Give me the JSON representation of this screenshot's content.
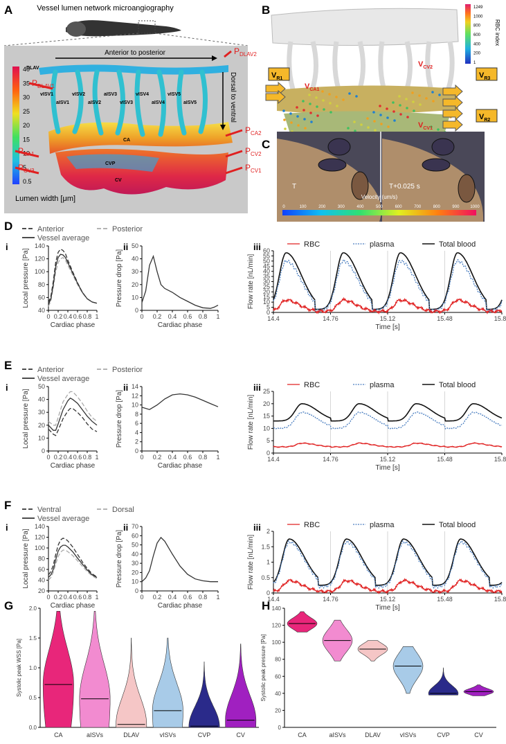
{
  "panels": {
    "A": {
      "letter": "A",
      "title": "Vessel lumen network microangiography",
      "arrow_ap": "Anterior to posterior",
      "arrow_dv": "Dorsal to ventral",
      "colorbar_ticks": [
        "40",
        "35",
        "30",
        "25",
        "20",
        "15",
        "10",
        "5",
        "0.5"
      ],
      "colorbar_label": "Lumen width [μm]",
      "colors": {
        "panel_bg": "#c9c9c9",
        "pressure_label": "#e02020"
      },
      "vessel_labels": [
        "DLAV",
        "vISV1",
        "aISV1",
        "vISV2",
        "aISV2",
        "aISV3",
        "vISV3",
        "vISV4",
        "aISV4",
        "vISV5",
        "aISV5",
        "CA",
        "CVP",
        "CV"
      ],
      "pressure_labels": [
        {
          "p": "P",
          "sub": "DLAV2"
        },
        {
          "p": "P",
          "sub": "DLAV1"
        },
        {
          "p": "P",
          "sub": "CA2"
        },
        {
          "p": "P",
          "sub": "CA1"
        },
        {
          "p": "P",
          "sub": "CV2"
        },
        {
          "p": "P",
          "sub": "CV3"
        },
        {
          "p": "P",
          "sub": "CV1"
        }
      ]
    },
    "B": {
      "letter": "B",
      "colorbar_ticks": [
        "1249",
        "1000",
        "800",
        "600",
        "400",
        "200",
        "1"
      ],
      "colorbar_label": "RBC index",
      "velocity_labels": [
        {
          "v": "V",
          "sub": "R1"
        },
        {
          "v": "V",
          "sub": "R3"
        },
        {
          "v": "V",
          "sub": "R2"
        },
        {
          "v": "V",
          "sub": "CA1"
        },
        {
          "v": "V",
          "sub": "CV2"
        },
        {
          "v": "V",
          "sub": "CV1"
        }
      ]
    },
    "C": {
      "letter": "C",
      "frame_left": "T",
      "frame_right": "T+0.025 s",
      "colorbar_label": "Velocity (um/s)",
      "colorbar_ticks": [
        "0",
        "100",
        "200",
        "300",
        "400",
        "500",
        "600",
        "700",
        "800",
        "900",
        "1000"
      ]
    }
  },
  "chart_data": [
    {
      "id": "D-i",
      "letter": "D",
      "sub": "i",
      "type": "line",
      "legend": [
        {
          "name": "Anterior",
          "style": "dash-dark"
        },
        {
          "name": "Posterior",
          "style": "dash-light"
        },
        {
          "name": "Vessel average",
          "style": "solid"
        }
      ],
      "xlabel": "Cardiac phase",
      "ylabel": "Local pressure [Pa]",
      "xlim": [
        0,
        1
      ],
      "ylim": [
        40,
        140
      ],
      "xticks": [
        "0",
        "0.2",
        "0.4",
        "0.6",
        "0.8",
        "1"
      ],
      "yticks": [
        "40",
        "60",
        "80",
        "100",
        "120",
        "140"
      ],
      "x": [
        0,
        0.05,
        0.1,
        0.15,
        0.2,
        0.25,
        0.3,
        0.35,
        0.4,
        0.5,
        0.6,
        0.7,
        0.8,
        0.9,
        1
      ],
      "series": [
        {
          "name": "Anterior",
          "values": [
            52,
            62,
            85,
            115,
            130,
            135,
            133,
            128,
            118,
            100,
            83,
            68,
            58,
            53,
            51
          ]
        },
        {
          "name": "Posterior",
          "values": [
            46,
            55,
            75,
            100,
            114,
            120,
            122,
            118,
            110,
            95,
            80,
            67,
            58,
            53,
            51
          ]
        },
        {
          "name": "Vessel average",
          "values": [
            49,
            58,
            80,
            108,
            122,
            127,
            126,
            122,
            114,
            98,
            82,
            68,
            58,
            53,
            51
          ]
        }
      ]
    },
    {
      "id": "D-ii",
      "sub": "ii",
      "type": "line",
      "xlabel": "Cardiac phase",
      "ylabel": "Pressure drop [Pa]",
      "xlim": [
        0,
        1
      ],
      "ylim": [
        0,
        50
      ],
      "xticks": [
        "0",
        "0.2",
        "0.4",
        "0.6",
        "0.8",
        "1"
      ],
      "yticks": [
        "0",
        "10",
        "20",
        "30",
        "40",
        "50"
      ],
      "x": [
        0,
        0.05,
        0.1,
        0.15,
        0.2,
        0.25,
        0.3,
        0.4,
        0.5,
        0.6,
        0.7,
        0.8,
        0.9,
        0.95,
        1
      ],
      "series": [
        {
          "values": [
            6,
            15,
            35,
            42,
            30,
            20,
            17,
            14,
            10,
            7,
            4,
            2,
            1.5,
            2.5,
            4
          ]
        }
      ]
    },
    {
      "id": "D-iii",
      "sub": "iii",
      "type": "line",
      "legend": [
        {
          "name": "RBC",
          "style": "red"
        },
        {
          "name": "plasma",
          "style": "blue-dot"
        },
        {
          "name": "Total blood",
          "style": "black"
        }
      ],
      "xlabel": "Time [s]",
      "ylabel": "Flow rate [nL/min]",
      "xlim": [
        14.4,
        15.84
      ],
      "ylim": [
        0,
        60
      ],
      "xticks": [
        "14.4",
        "14.76",
        "15.12",
        "15.48",
        "15.84"
      ],
      "yticks": [
        "0",
        "5",
        "10",
        "15",
        "20",
        "25",
        "30",
        "35",
        "40",
        "45",
        "50",
        "55",
        "60"
      ],
      "pattern": {
        "period": 0.36,
        "first_peak": 14.48,
        "total": {
          "base": 3,
          "peak": 58
        },
        "plasma": {
          "base": 2,
          "peak": 50
        },
        "rbc": {
          "base": 1,
          "peak": 12
        }
      }
    },
    {
      "id": "E-i",
      "letter": "E",
      "sub": "i",
      "type": "line",
      "legend": [
        {
          "name": "Anterior",
          "style": "dash-dark"
        },
        {
          "name": "Posterior",
          "style": "dash-light"
        },
        {
          "name": "Vessel average",
          "style": "solid"
        }
      ],
      "xlabel": "Cardiac phase",
      "ylabel": "Local pressure [Pa]",
      "xlim": [
        0,
        1
      ],
      "ylim": [
        0,
        50
      ],
      "xticks": [
        "0",
        "0.2",
        "0.4",
        "0.6",
        "0.8",
        "1"
      ],
      "yticks": [
        "0",
        "10",
        "20",
        "30",
        "40",
        "50"
      ],
      "x": [
        0,
        0.1,
        0.15,
        0.2,
        0.3,
        0.4,
        0.45,
        0.5,
        0.6,
        0.7,
        0.8,
        0.9,
        1
      ],
      "series": [
        {
          "name": "Anterior",
          "values": [
            17,
            13,
            12,
            16,
            25,
            31,
            33,
            33,
            30,
            26,
            21,
            17,
            15
          ]
        },
        {
          "name": "Posterior",
          "values": [
            23,
            20,
            20,
            26,
            38,
            44,
            46,
            46,
            42,
            37,
            31,
            26,
            23
          ]
        },
        {
          "name": "Vessel average",
          "values": [
            20,
            16,
            16,
            21,
            32,
            39,
            41,
            40,
            37,
            32,
            27,
            23,
            20
          ]
        }
      ]
    },
    {
      "id": "E-ii",
      "sub": "ii",
      "type": "line",
      "xlabel": "Cardiac phase",
      "ylabel": "Pressure drop [Pa]",
      "xlim": [
        0,
        1
      ],
      "ylim": [
        0,
        14
      ],
      "xticks": [
        "0",
        "0.2",
        "0.4",
        "0.6",
        "0.8",
        "1"
      ],
      "yticks": [
        "0",
        "2",
        "4",
        "6",
        "8",
        "10",
        "12",
        "14"
      ],
      "x": [
        0,
        0.1,
        0.2,
        0.3,
        0.4,
        0.5,
        0.6,
        0.7,
        0.8,
        0.9,
        1
      ],
      "series": [
        {
          "values": [
            9.5,
            9,
            10,
            11.3,
            12.2,
            12.4,
            12.2,
            11.7,
            11,
            10.3,
            9.6
          ]
        }
      ]
    },
    {
      "id": "E-iii",
      "sub": "iii",
      "type": "line",
      "legend": [
        {
          "name": "RBC",
          "style": "red"
        },
        {
          "name": "plasma",
          "style": "blue-dot"
        },
        {
          "name": "Total blood",
          "style": "black"
        }
      ],
      "xlabel": "Time [s]",
      "ylabel": "Flow rate [nL/min]",
      "xlim": [
        14.4,
        15.84
      ],
      "ylim": [
        0,
        25
      ],
      "xticks": [
        "14.4",
        "14.76",
        "15.12",
        "15.48",
        "15.84"
      ],
      "yticks": [
        "0",
        "5",
        "10",
        "15",
        "20",
        "25"
      ],
      "pattern": {
        "period": 0.36,
        "first_peak": 14.58,
        "total": {
          "base": 13,
          "peak": 20
        },
        "plasma": {
          "base": 10,
          "peak": 16.5
        },
        "rbc": {
          "base": 2.5,
          "peak": 4
        }
      }
    },
    {
      "id": "F-i",
      "letter": "F",
      "sub": "i",
      "type": "line",
      "legend": [
        {
          "name": "Ventral",
          "style": "dash-dark"
        },
        {
          "name": "Dorsal",
          "style": "dash-light"
        },
        {
          "name": "Vessel average",
          "style": "solid"
        }
      ],
      "xlabel": "Cardiac phase",
      "ylabel": "Local pressure [Pa]",
      "xlim": [
        0,
        1
      ],
      "ylim": [
        20,
        140
      ],
      "xticks": [
        "0",
        "0.2",
        "0.4",
        "0.6",
        "0.8",
        "1"
      ],
      "yticks": [
        "20",
        "40",
        "60",
        "80",
        "100",
        "120",
        "140"
      ],
      "x": [
        0,
        0.05,
        0.1,
        0.15,
        0.2,
        0.25,
        0.3,
        0.35,
        0.4,
        0.5,
        0.6,
        0.7,
        0.8,
        0.9,
        1
      ],
      "series": [
        {
          "name": "Ventral",
          "values": [
            50,
            56,
            68,
            88,
            105,
            115,
            118,
            117,
            113,
            102,
            88,
            74,
            62,
            52,
            46
          ]
        },
        {
          "name": "Dorsal",
          "values": [
            40,
            45,
            55,
            70,
            84,
            92,
            96,
            96,
            93,
            86,
            76,
            66,
            56,
            48,
            43
          ]
        },
        {
          "name": "Vessel average",
          "values": [
            45,
            50,
            60,
            78,
            94,
            102,
            105,
            105,
            102,
            93,
            81,
            70,
            59,
            50,
            45
          ]
        }
      ]
    },
    {
      "id": "F-ii",
      "sub": "ii",
      "type": "line",
      "xlabel": "Cardiac phase",
      "ylabel": "Pressure drop [Pa]",
      "xlim": [
        0,
        1
      ],
      "ylim": [
        0,
        70
      ],
      "xticks": [
        "0",
        "0.2",
        "0.4",
        "0.6",
        "0.8",
        "1"
      ],
      "yticks": [
        "0",
        "10",
        "20",
        "30",
        "40",
        "50",
        "60",
        "70"
      ],
      "x": [
        0,
        0.05,
        0.1,
        0.15,
        0.2,
        0.25,
        0.3,
        0.4,
        0.5,
        0.6,
        0.7,
        0.8,
        0.9,
        1
      ],
      "series": [
        {
          "values": [
            10,
            14,
            22,
            38,
            52,
            58,
            54,
            40,
            27,
            18,
            13,
            11,
            10,
            10
          ]
        }
      ]
    },
    {
      "id": "F-iii",
      "sub": "iii",
      "type": "line",
      "legend": [
        {
          "name": "RBC",
          "style": "red"
        },
        {
          "name": "plasma",
          "style": "blue-dot"
        },
        {
          "name": "Total blood",
          "style": "black"
        }
      ],
      "xlabel": "Time [s]",
      "ylabel": "Flow rate [nL/min]",
      "xlim": [
        14.4,
        15.84
      ],
      "ylim": [
        0,
        2
      ],
      "xticks": [
        "14.4",
        "14.76",
        "15.12",
        "15.48",
        "15.84"
      ],
      "yticks": [
        "0",
        "0.5",
        "1",
        "1.5",
        "2"
      ],
      "pattern": {
        "period": 0.36,
        "first_peak": 14.5,
        "total": {
          "base": 0.25,
          "peak": 1.75
        },
        "plasma": {
          "base": 0.2,
          "peak": 1.65
        },
        "rbc": {
          "base": 0.05,
          "peak": 0.4
        }
      }
    },
    {
      "id": "G",
      "letter": "G",
      "type": "violin",
      "ylabel": "Systolic peak WSS [Pa]",
      "ylim": [
        0,
        2
      ],
      "yticks": [
        "0.0",
        "0.5",
        "1.0",
        "1.5",
        "2.0"
      ],
      "categories": [
        "CA",
        "aISVs",
        "DLAV",
        "vISVs",
        "CVP",
        "CV"
      ],
      "colors": [
        "#e8267a",
        "#f28bd0",
        "#f5c6c6",
        "#a8cbe8",
        "#2a2a8a",
        "#a020c0"
      ],
      "medians": [
        0.72,
        0.48,
        0.05,
        0.28,
        0.02,
        0.12
      ],
      "max": [
        1.95,
        1.95,
        1.5,
        1.5,
        1.1,
        1.4
      ]
    },
    {
      "id": "H",
      "letter": "H",
      "type": "violin",
      "ylabel": "Systolic peak pressure [Pa]",
      "ylim": [
        0,
        140
      ],
      "yticks": [
        "0",
        "20",
        "40",
        "60",
        "80",
        "100",
        "120",
        "140"
      ],
      "categories": [
        "CA",
        "aISVs",
        "DLAV",
        "vISVs",
        "CVP",
        "CV"
      ],
      "colors": [
        "#e8267a",
        "#f28bd0",
        "#f5c6c6",
        "#a8cbe8",
        "#2a2a8a",
        "#a020c0"
      ],
      "medians": [
        122,
        102,
        92,
        72,
        40,
        42
      ],
      "min": [
        112,
        78,
        78,
        40,
        38,
        37
      ],
      "max": [
        136,
        126,
        102,
        95,
        70,
        50
      ]
    }
  ]
}
